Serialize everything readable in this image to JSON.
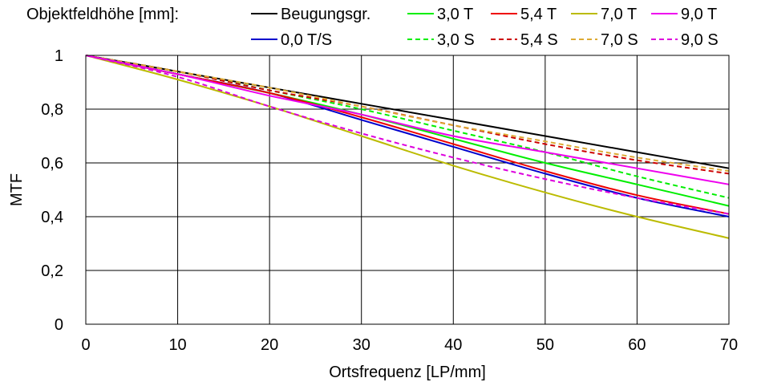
{
  "chart_data": {
    "type": "line",
    "xlabel": "Ortsfrequenz [LP/mm]",
    "ylabel": "MTF",
    "xlim": [
      0,
      70
    ],
    "ylim": [
      0,
      1
    ],
    "x_ticks": [
      0,
      10,
      20,
      30,
      40,
      50,
      60,
      70
    ],
    "y_ticks": [
      0,
      0.2,
      0.4,
      0.6,
      0.8,
      1
    ],
    "x_tick_labels": [
      "0",
      "10",
      "20",
      "30",
      "40",
      "50",
      "60",
      "70"
    ],
    "y_tick_labels": [
      "0",
      "0,2",
      "0,4",
      "0,6",
      "0,8",
      "1"
    ],
    "grid": true,
    "legend": {
      "title": "Objektfeldhöhe [mm]:",
      "placement": "top"
    },
    "x": [
      0,
      10,
      20,
      30,
      40,
      50,
      60,
      70
    ],
    "series": [
      {
        "name": "Beugungsgr.",
        "color": "#000000",
        "dash": "solid",
        "values": [
          1.0,
          0.94,
          0.88,
          0.82,
          0.76,
          0.7,
          0.64,
          0.58
        ]
      },
      {
        "name": "0,0 T/S",
        "color": "#0000cc",
        "dash": "solid",
        "values": [
          1.0,
          0.93,
          0.86,
          0.76,
          0.66,
          0.56,
          0.47,
          0.4
        ]
      },
      {
        "name": "3,0 T",
        "color": "#00ee00",
        "dash": "solid",
        "values": [
          1.0,
          0.93,
          0.86,
          0.78,
          0.69,
          0.6,
          0.52,
          0.44
        ]
      },
      {
        "name": "3,0 S",
        "color": "#00ee00",
        "dash": "dashed",
        "values": [
          1.0,
          0.94,
          0.87,
          0.8,
          0.72,
          0.64,
          0.55,
          0.47
        ]
      },
      {
        "name": "5,4 T",
        "color": "#ee0000",
        "dash": "solid",
        "values": [
          1.0,
          0.93,
          0.86,
          0.77,
          0.67,
          0.57,
          0.48,
          0.41
        ]
      },
      {
        "name": "5,4 S",
        "color": "#cc0000",
        "dash": "dashed",
        "values": [
          1.0,
          0.94,
          0.87,
          0.81,
          0.74,
          0.67,
          0.61,
          0.56
        ]
      },
      {
        "name": "7,0 T",
        "color": "#bbbb00",
        "dash": "solid",
        "values": [
          1.0,
          0.91,
          0.81,
          0.7,
          0.59,
          0.49,
          0.4,
          0.32
        ]
      },
      {
        "name": "7,0 S",
        "color": "#ddaa33",
        "dash": "dashed",
        "values": [
          1.0,
          0.94,
          0.88,
          0.81,
          0.74,
          0.68,
          0.62,
          0.57
        ]
      },
      {
        "name": "9,0 T",
        "color": "#ee00ee",
        "dash": "solid",
        "values": [
          1.0,
          0.93,
          0.85,
          0.78,
          0.7,
          0.64,
          0.58,
          0.52
        ]
      },
      {
        "name": "9,0 S",
        "color": "#dd00dd",
        "dash": "dashed",
        "values": [
          1.0,
          0.92,
          0.81,
          0.71,
          0.62,
          0.54,
          0.47,
          0.41
        ]
      }
    ]
  }
}
